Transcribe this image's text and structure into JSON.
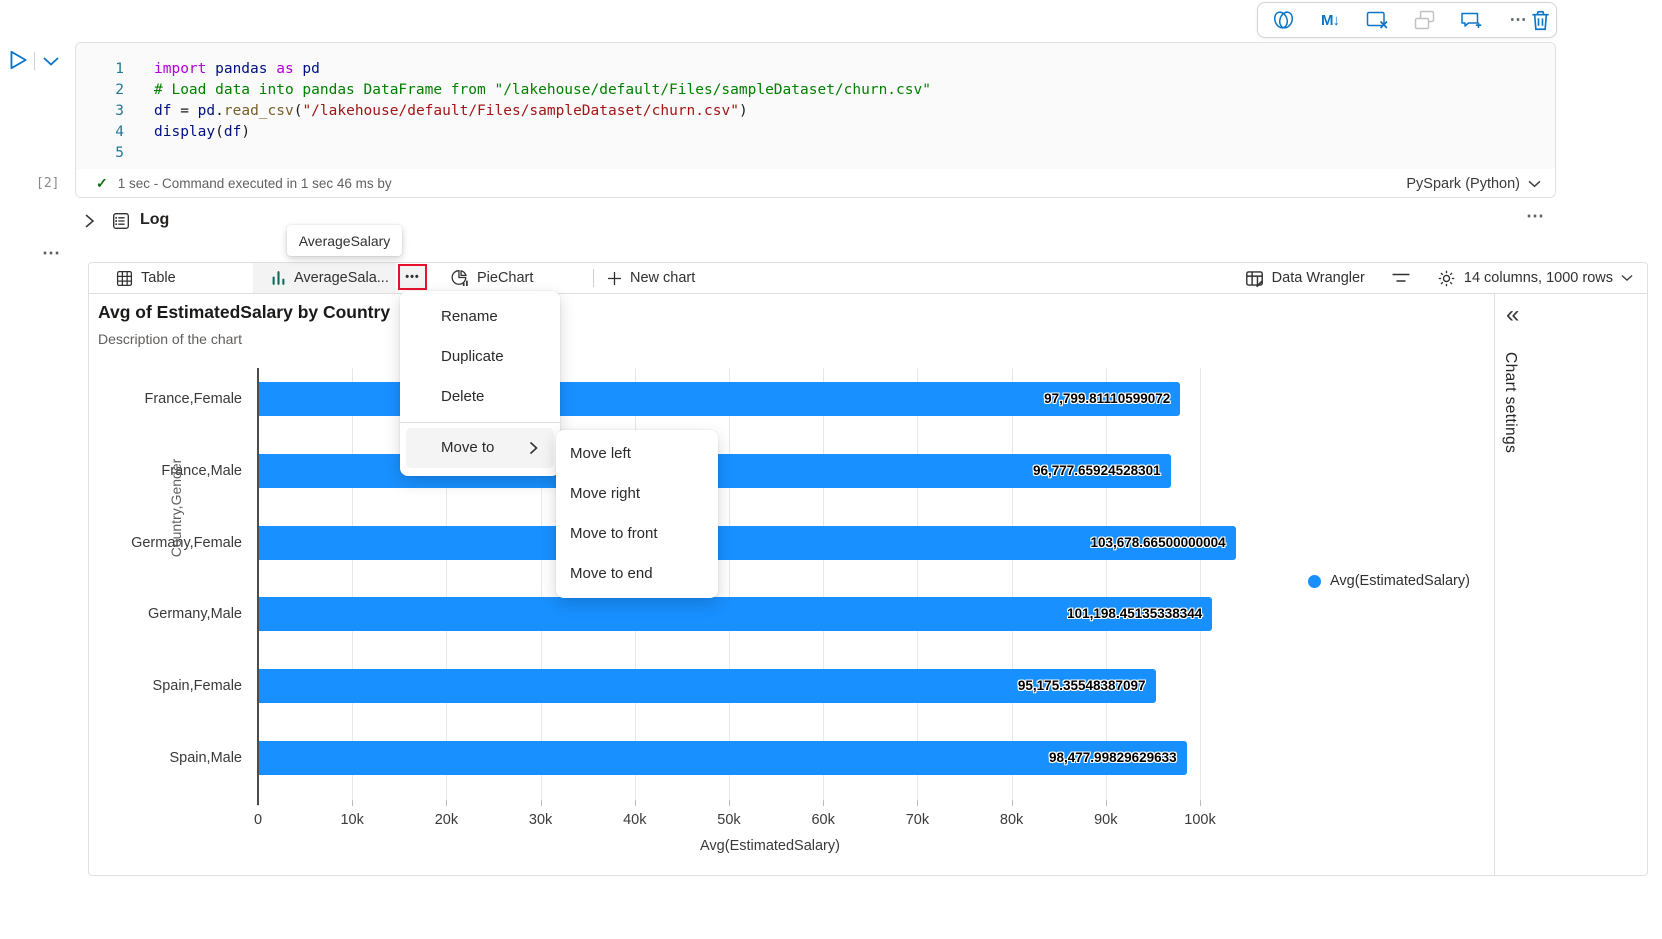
{
  "cell_toolbar": {
    "icons": [
      {
        "name": "copilot-icon"
      },
      {
        "name": "convert-to-markdown-icon",
        "glyph": "M↓"
      },
      {
        "name": "clear-output-icon"
      },
      {
        "name": "merge-cells-icon",
        "disabled": true
      },
      {
        "name": "add-comment-icon"
      },
      {
        "name": "more-commands-icon",
        "glyph": "⋯"
      },
      {
        "name": "delete-cell-icon"
      }
    ]
  },
  "cell": {
    "execution_count": "[2]",
    "line_numbers": [
      "1",
      "2",
      "3",
      "4",
      "5"
    ],
    "code_lines": [
      [
        {
          "text": "import",
          "style": "kw"
        },
        {
          "text": " pandas ",
          "style": "id"
        },
        {
          "text": "as",
          "style": "kw"
        },
        {
          "text": " pd",
          "style": "id"
        }
      ],
      [
        {
          "text": "# Load data into pandas DataFrame from \"/lakehouse/default/Files/sampleDataset/churn.csv\"",
          "style": "comment"
        }
      ],
      [
        {
          "text": "df",
          "style": "id"
        },
        {
          "text": " = ",
          "style": "plain"
        },
        {
          "text": "pd",
          "style": "id"
        },
        {
          "text": ".",
          "style": "plain"
        },
        {
          "text": "read_csv",
          "style": "fn"
        },
        {
          "text": "(",
          "style": "plain"
        },
        {
          "text": "\"/lakehouse/default/Files/sampleDataset/churn.csv\"",
          "style": "str"
        },
        {
          "text": ")",
          "style": "plain"
        }
      ],
      [
        {
          "text": "display",
          "style": "id"
        },
        {
          "text": "(",
          "style": "plain"
        },
        {
          "text": "df",
          "style": "id"
        },
        {
          "text": ")",
          "style": "plain"
        }
      ],
      []
    ],
    "status_text": "1 sec - Command executed in 1 sec 46 ms by",
    "kernel": "PySpark (Python)"
  },
  "log_row": {
    "title": "Log",
    "more_glyph": "⋯"
  },
  "left_more_glyph": "⋯",
  "tab_tooltip": "AverageSalary",
  "results_toolbar": {
    "tabs": [
      {
        "label": "Table"
      },
      {
        "label": "AverageSala...",
        "selected": true
      },
      {
        "label": "PieChart"
      }
    ],
    "more_tab_glyph": "•••",
    "new_chart_label": "New chart",
    "data_wrangler_label": "Data Wrangler",
    "summary": "14 columns, 1000 rows"
  },
  "context_menu": {
    "items": [
      "Rename",
      "Duplicate",
      "Delete"
    ],
    "move_to_label": "Move to",
    "submenu": [
      "Move left",
      "Move right",
      "Move to front",
      "Move to end"
    ]
  },
  "chart_settings_label": "Chart settings",
  "chart_data": {
    "type": "bar",
    "orientation": "horizontal",
    "title": "Avg of EstimatedSalary by Country",
    "subtitle": "Description of the chart",
    "categories": [
      "France,Female",
      "France,Male",
      "Germany,Female",
      "Germany,Male",
      "Spain,Female",
      "Spain,Male"
    ],
    "values": [
      97799.81110599072,
      96777.65924528301,
      103678.66500000004,
      101198.45135338344,
      95175.35548387097,
      98477.99829629633
    ],
    "value_labels": [
      "97,799.81110599072",
      "96,777.65924528301",
      "103,678.66500000004",
      "101,198.45135338344",
      "95,175.35548387097",
      "98,477.99829629633"
    ],
    "xlabel": "Avg(EstimatedSalary)",
    "ylabel": "Country,Gender",
    "x_ticks": [
      "0",
      "10k",
      "20k",
      "30k",
      "40k",
      "50k",
      "60k",
      "70k",
      "80k",
      "90k",
      "100k"
    ],
    "xlim": [
      0,
      100000
    ],
    "grid": true,
    "legend_position": "right",
    "legend": [
      {
        "label": "Avg(EstimatedSalary)",
        "color": "#1890ff"
      }
    ],
    "bar_color": "#1890ff"
  },
  "colors": {
    "accent": "#0b76c9",
    "bar_blue": "#1890ff",
    "highlight_red": "#e8112d",
    "tab_icon_teal": "#0c695a",
    "success_green": "#0e700e"
  }
}
